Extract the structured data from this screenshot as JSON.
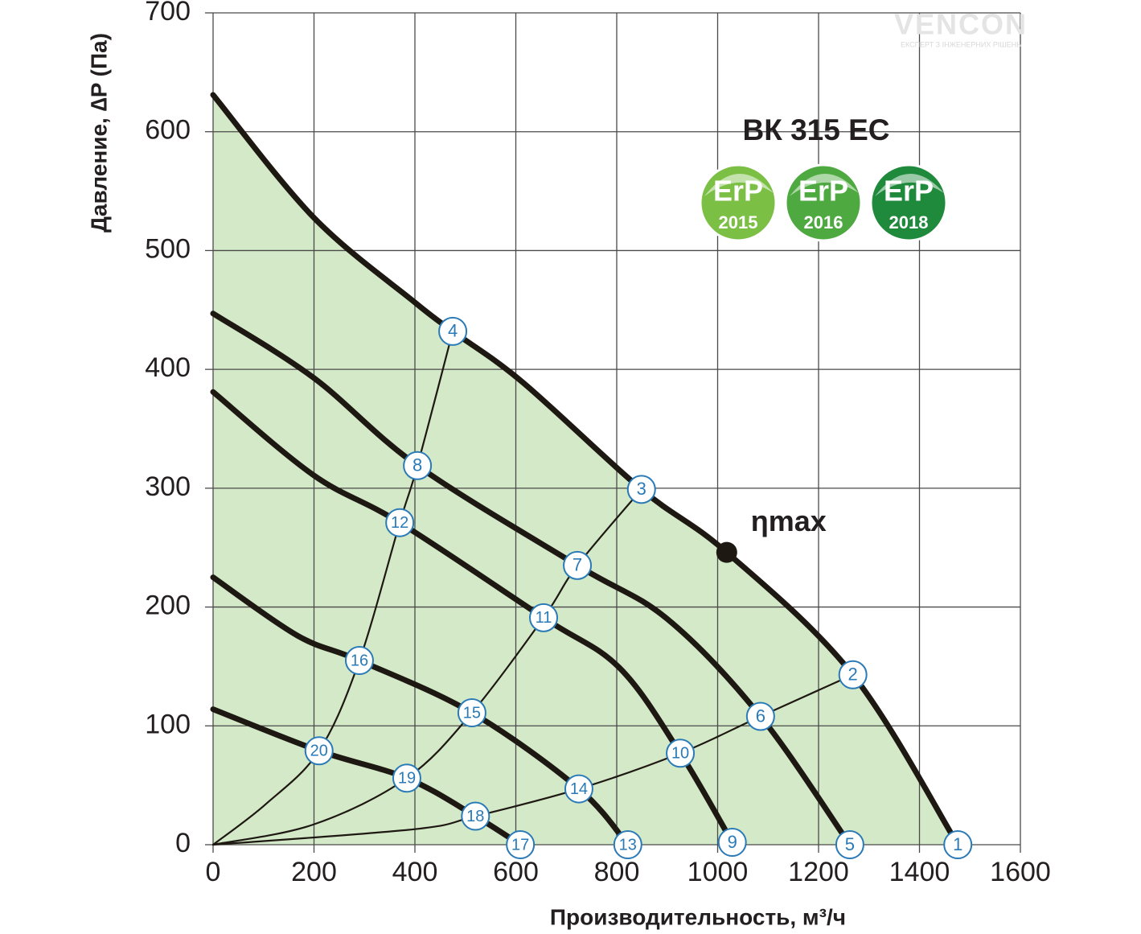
{
  "chart_data": {
    "type": "line",
    "title": "ВК 315 ЕС",
    "x_label": "Производительность, м³/ч",
    "y_label": "Давление, ∆P (Па)",
    "xlim": [
      0,
      1600
    ],
    "ylim": [
      0,
      700
    ],
    "xticks": [
      0,
      200,
      400,
      600,
      800,
      1000,
      1200,
      1400,
      1600
    ],
    "yticks": [
      0,
      100,
      200,
      300,
      400,
      500,
      600,
      700
    ],
    "grid": true,
    "area_color": "#d4e9c8",
    "series": [
      {
        "role": "fan",
        "color": "#1e1812",
        "x": [
          0,
          199,
          398,
          475,
          614,
          849,
          1018,
          1268,
          1476
        ],
        "values": [
          631,
          528,
          457,
          432,
          389,
          299,
          246,
          143,
          0
        ]
      },
      {
        "role": "fan",
        "color": "#1e1812",
        "x": [
          0,
          199,
          405,
          722,
          900,
          1085,
          1262
        ],
        "values": [
          447,
          393,
          319,
          235,
          190,
          108,
          0
        ]
      },
      {
        "role": "fan",
        "color": "#1e1812",
        "x": [
          0,
          199,
          370,
          655,
          805,
          926,
          1029
        ],
        "values": [
          381,
          311,
          271,
          191,
          149,
          77,
          2
        ]
      },
      {
        "role": "fan",
        "color": "#1e1812",
        "x": [
          0,
          167,
          290,
          513,
          725,
          822
        ],
        "values": [
          225,
          176,
          155,
          111,
          47,
          0
        ]
      },
      {
        "role": "fan",
        "color": "#1e1812",
        "x": [
          0,
          210,
          384,
          520,
          609
        ],
        "values": [
          114,
          79,
          56,
          24,
          0
        ]
      },
      {
        "role": "system",
        "color": "#1e1812",
        "x": [
          0,
          104,
          210,
          290,
          370,
          405,
          475
        ],
        "values": [
          0,
          34,
          79,
          155,
          271,
          319,
          432
        ]
      },
      {
        "role": "system",
        "color": "#1e1812",
        "x": [
          0,
          199,
          384,
          513,
          655,
          722,
          849
        ],
        "values": [
          0,
          17,
          56,
          111,
          191,
          235,
          299
        ]
      },
      {
        "role": "system",
        "color": "#1e1812",
        "x": [
          0,
          398,
          520,
          725,
          926,
          1085,
          1268
        ],
        "values": [
          0,
          13,
          24,
          47,
          77,
          108,
          143
        ]
      }
    ],
    "annotation": {
      "text": "ηmax",
      "x": 1018,
      "y": 246
    },
    "points": [
      {
        "label": "1",
        "x": 1476,
        "y": 0
      },
      {
        "label": "2",
        "x": 1268,
        "y": 143
      },
      {
        "label": "3",
        "x": 849,
        "y": 299
      },
      {
        "label": "4",
        "x": 475,
        "y": 432
      },
      {
        "label": "5",
        "x": 1262,
        "y": 0
      },
      {
        "label": "6",
        "x": 1085,
        "y": 108
      },
      {
        "label": "7",
        "x": 722,
        "y": 235
      },
      {
        "label": "8",
        "x": 405,
        "y": 319
      },
      {
        "label": "9",
        "x": 1029,
        "y": 2
      },
      {
        "label": "10",
        "x": 926,
        "y": 77
      },
      {
        "label": "11",
        "x": 655,
        "y": 191
      },
      {
        "label": "12",
        "x": 370,
        "y": 271
      },
      {
        "label": "13",
        "x": 822,
        "y": 0
      },
      {
        "label": "14",
        "x": 725,
        "y": 47
      },
      {
        "label": "15",
        "x": 513,
        "y": 111
      },
      {
        "label": "16",
        "x": 290,
        "y": 155
      },
      {
        "label": "17",
        "x": 609,
        "y": 0
      },
      {
        "label": "18",
        "x": 520,
        "y": 24
      },
      {
        "label": "19",
        "x": 384,
        "y": 56
      },
      {
        "label": "20",
        "x": 210,
        "y": 79
      }
    ],
    "badges": [
      {
        "text": "ErP",
        "year": "2015",
        "color": "#7cbf45"
      },
      {
        "text": "ErP",
        "year": "2016",
        "color": "#4ea940"
      },
      {
        "text": "ErP",
        "year": "2018",
        "color": "#1f8a3c"
      }
    ],
    "logo": {
      "name": "VENCON",
      "tagline": "ЕКСПЕРТ З ІНЖЕНЕРНИХ РІШЕНЬ"
    }
  }
}
